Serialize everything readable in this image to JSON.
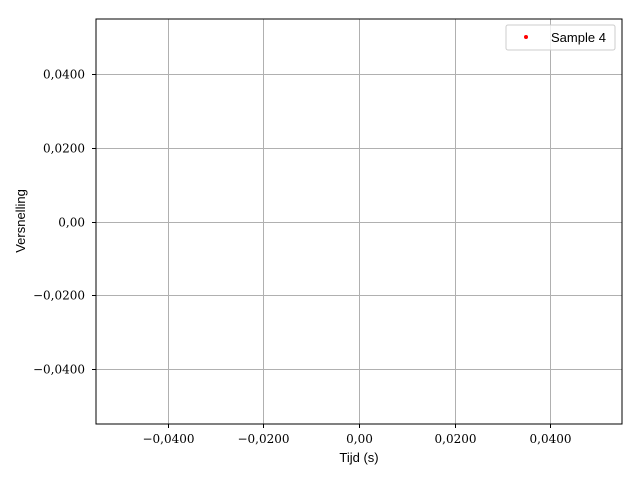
{
  "chart_data": {
    "type": "scatter",
    "title": "",
    "xlabel": "Tijd (s)",
    "ylabel": "Versnelling",
    "xlim": [
      -0.055,
      0.055
    ],
    "ylim": [
      -0.055,
      0.055
    ],
    "grid": true,
    "legend_position": "top-right",
    "xticks": [
      {
        "value": -0.04,
        "label": "−0,0400"
      },
      {
        "value": -0.02,
        "label": "−0,0200"
      },
      {
        "value": 0.0,
        "label": "0,00"
      },
      {
        "value": 0.02,
        "label": "0,0200"
      },
      {
        "value": 0.04,
        "label": "0,0400"
      }
    ],
    "yticks": [
      {
        "value": 0.04,
        "label": "0,0400"
      },
      {
        "value": 0.02,
        "label": "0,0200"
      },
      {
        "value": 0.0,
        "label": "0,00"
      },
      {
        "value": -0.02,
        "label": "−0,0200"
      },
      {
        "value": -0.04,
        "label": "−0,0400"
      }
    ],
    "series": [
      {
        "name": "Sample 4",
        "color": "#ff0000",
        "marker": "dot",
        "x": [],
        "y": []
      }
    ]
  }
}
